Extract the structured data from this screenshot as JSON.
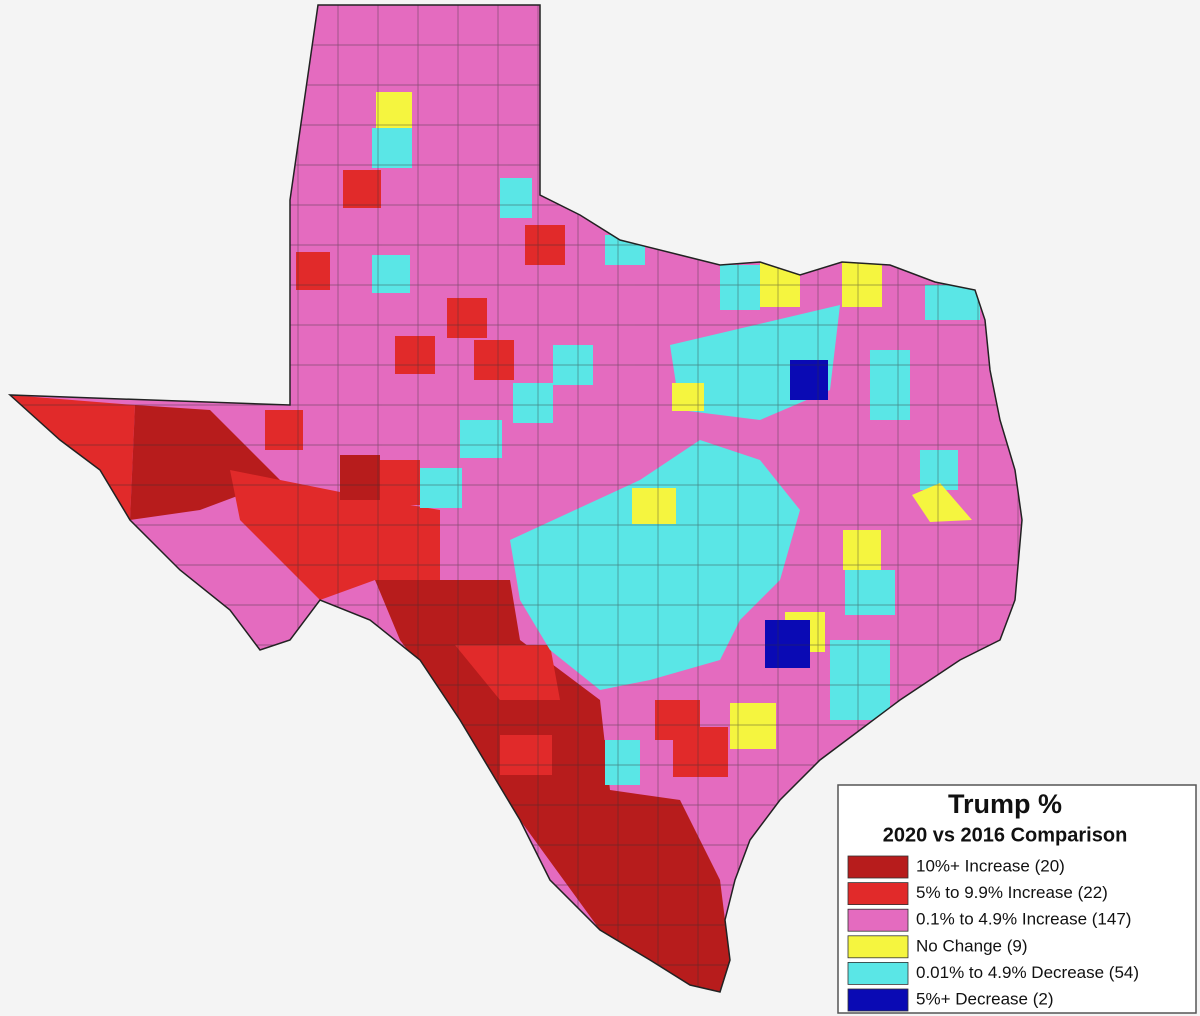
{
  "title": "Trump %",
  "subtitle": "2020 vs 2016 Comparison",
  "legend": [
    {
      "label": "10%+ Increase (20)",
      "color": "#b71c1c"
    },
    {
      "label": "5% to 9.9% Increase (22)",
      "color": "#e12a2a"
    },
    {
      "label": "0.1% to 4.9% Increase (147)",
      "color": "#e46bbf"
    },
    {
      "label": "No Change (9)",
      "color": "#f5f53f"
    },
    {
      "label": "0.01% to 4.9% Decrease (54)",
      "color": "#5ae6e6"
    },
    {
      "label": "5%+ Decrease (2)",
      "color": "#0a0ab4"
    }
  ]
}
